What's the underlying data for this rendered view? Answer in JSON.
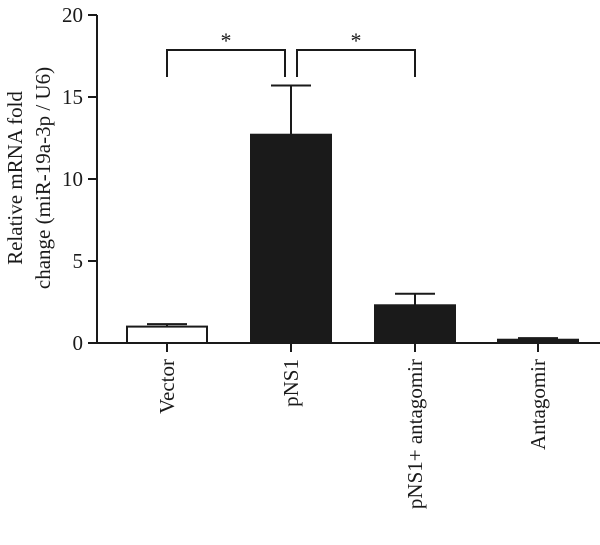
{
  "chart_data": {
    "type": "bar",
    "title": "",
    "xlabel": "",
    "ylabel": "Relative mRNA fold change (miR-19a-3p / U6)",
    "ylabel_lines": [
      "Relative mRNA fold",
      "change (miR-19a-3p / U6)"
    ],
    "ylim": [
      0,
      20
    ],
    "yticks": [
      0,
      5,
      10,
      15,
      20
    ],
    "grid": false,
    "categories": [
      "Vector",
      "pNS1",
      "pNS1+ antagomir",
      "Antagomir"
    ],
    "values": [
      1.0,
      12.7,
      2.3,
      0.2
    ],
    "errors": [
      0.15,
      3.0,
      0.7,
      0.1
    ],
    "bar_colors": [
      "#ffffff",
      "#1a1a1a",
      "#1a1a1a",
      "#1a1a1a"
    ],
    "significance": [
      {
        "from": 0,
        "to": 1,
        "label": "*"
      },
      {
        "from": 1,
        "to": 2,
        "label": "*"
      }
    ]
  }
}
